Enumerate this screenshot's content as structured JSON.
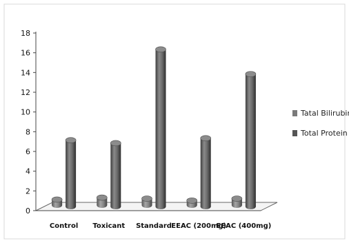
{
  "chart_data": {
    "type": "bar",
    "title": "",
    "xlabel": "",
    "ylabel": "",
    "categories": [
      "Control",
      "Toxicant",
      "Standard",
      "EEAC (200mg)",
      "EEAC (400mg)"
    ],
    "ylim": [
      0,
      18
    ],
    "yticks": [
      0,
      2,
      4,
      6,
      8,
      10,
      12,
      14,
      16,
      18
    ],
    "legend_position": "right",
    "series": [
      {
        "name": "Tatal Bilirubin",
        "values": [
          0.7,
          0.9,
          0.8,
          0.6,
          0.8
        ],
        "color": "#7a7a7a"
      },
      {
        "name": "Total Protein",
        "values": [
          7.0,
          6.7,
          16.2,
          7.2,
          13.7
        ],
        "color": "#555555"
      }
    ],
    "style": "3d-cylinder",
    "grid": false
  }
}
